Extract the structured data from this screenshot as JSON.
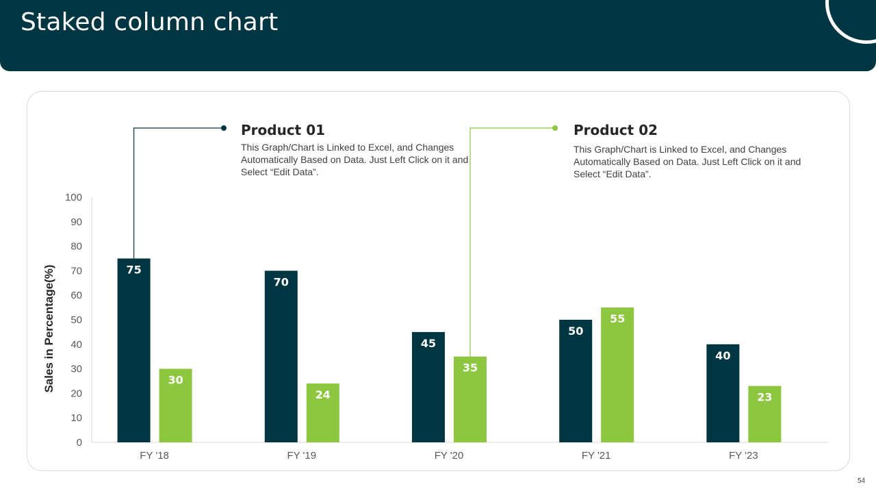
{
  "slide": {
    "title": "Staked column chart",
    "page_number": "54"
  },
  "legend": {
    "product1": {
      "title": "Product 01",
      "description": "This Graph/Chart is Linked to Excel, and Changes Automatically Based on Data. Just Left Click on it and Select “Edit Data”."
    },
    "product2": {
      "title": "Product 02",
      "description": "This Graph/Chart is Linked to Excel, and Changes Automatically Based on Data. Just Left Click on it and Select “Edit Data”."
    }
  },
  "colors": {
    "product1": "#003641",
    "product2": "#8dc63f",
    "axis": "#d9d9d9",
    "tick_text": "#595959"
  },
  "chart_data": {
    "type": "bar",
    "title": "Staked column chart",
    "xlabel": "",
    "ylabel": "Sales in Percentage(%)",
    "ylim": [
      0,
      100
    ],
    "yticks": [
      0,
      10,
      20,
      30,
      40,
      50,
      60,
      70,
      80,
      90,
      100
    ],
    "categories": [
      "FY '18",
      "FY '19",
      "FY '20",
      "FY '21",
      "FY '23"
    ],
    "series": [
      {
        "name": "Product 01",
        "values": [
          75,
          70,
          45,
          50,
          40
        ]
      },
      {
        "name": "Product 02",
        "values": [
          30,
          24,
          35,
          55,
          23
        ]
      }
    ]
  }
}
